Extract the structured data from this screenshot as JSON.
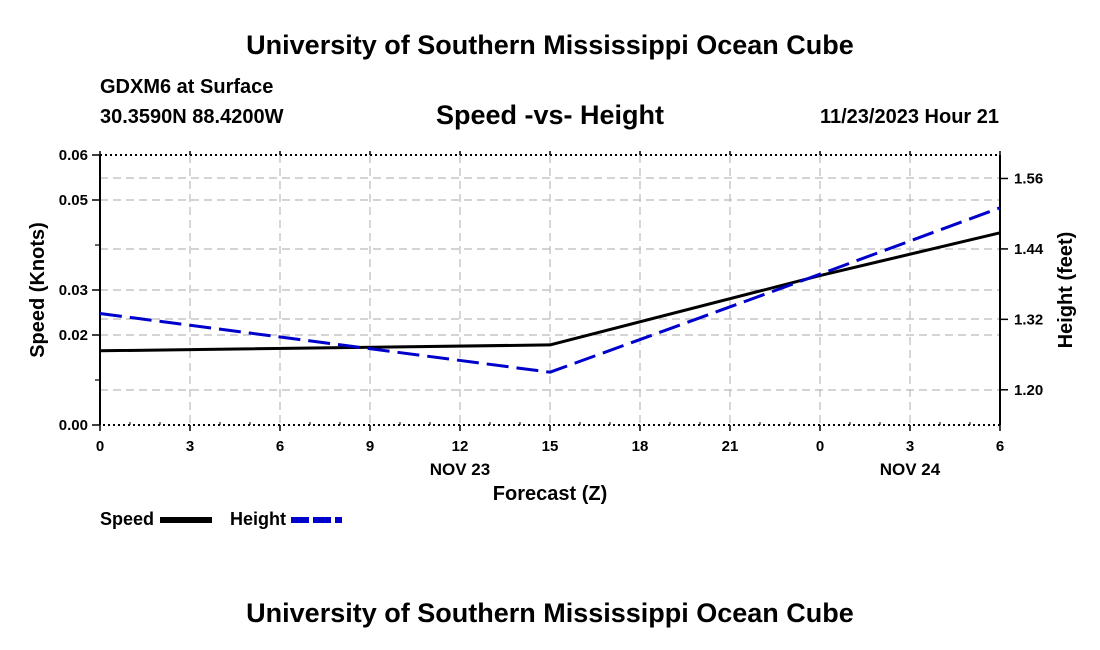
{
  "header": {
    "title": "University of Southern Mississippi Ocean Cube",
    "station": "GDXM6 at Surface",
    "location": "30.3590N  88.4200W",
    "subtitle": "Speed -vs- Height",
    "datetime": "11/23/2023 Hour 21"
  },
  "footer": {
    "title": "University of Southern Mississippi Ocean Cube"
  },
  "colors": {
    "speed": "#000000",
    "height": "#0000cc",
    "grid": "#bbbbbb"
  },
  "chart_data": {
    "type": "line",
    "title": "Speed -vs- Height",
    "xlabel": "Forecast (Z)",
    "ylabel": "Speed (Knots)",
    "y2label": "Height (feet)",
    "x_hours": [
      0,
      3,
      6,
      9,
      12,
      15,
      18,
      21,
      24,
      27,
      30
    ],
    "x_tick_labels": [
      "0",
      "3",
      "6",
      "9",
      "12",
      "15",
      "18",
      "21",
      "0",
      "3",
      "6"
    ],
    "date_labels": [
      {
        "hour": 12,
        "label": "NOV 23"
      },
      {
        "hour": 27,
        "label": "NOV 24"
      }
    ],
    "xlim": [
      0,
      30
    ],
    "ylim": [
      0,
      0.06
    ],
    "y_ticks": [
      0.0,
      0.02,
      0.03,
      0.05,
      0.06
    ],
    "y_tick_labels": [
      "0.00",
      "0.02",
      "0.03",
      "0.05",
      "0.06"
    ],
    "y2lim": [
      1.14,
      1.6
    ],
    "y2_ticks": [
      1.2,
      1.32,
      1.44,
      1.56
    ],
    "y2_tick_labels": [
      "1.20",
      "1.32",
      "1.44",
      "1.56"
    ],
    "grid": true,
    "legend_position": "bottom-left",
    "series": [
      {
        "name": "Speed",
        "axis": "left",
        "style": "solid",
        "x": [
          0,
          15,
          24,
          30
        ],
        "values": [
          0.0165,
          0.0178,
          0.0332,
          0.0427
        ]
      },
      {
        "name": "Height",
        "axis": "right",
        "style": "dashed",
        "x": [
          0,
          15,
          24,
          30
        ],
        "values": [
          1.33,
          1.23,
          1.397,
          1.51
        ]
      }
    ]
  }
}
